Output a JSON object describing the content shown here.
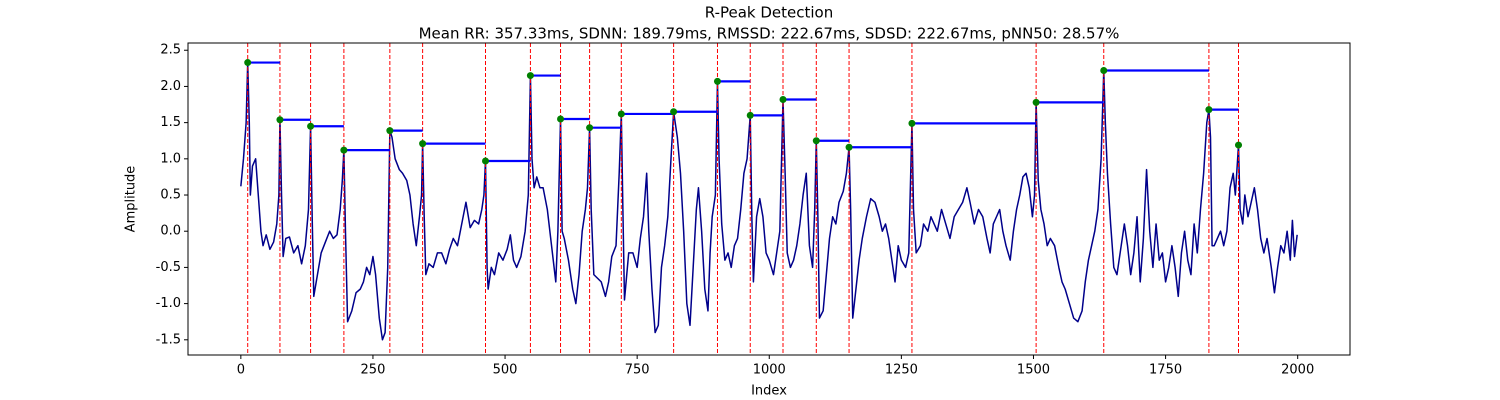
{
  "chart_data": {
    "type": "line",
    "title": "R-Peak Detection",
    "subtitle": "Mean RR: 357.33ms, SDNN: 189.79ms, RMSSD: 222.67ms, SDSD: 222.67ms, pNN50: 28.57%",
    "x_label": "Index",
    "y_label": "Amplitude",
    "xlim": [
      -100,
      2099
    ],
    "ylim": [
      -1.71,
      2.6
    ],
    "xticks": [
      0,
      250,
      500,
      750,
      1000,
      1250,
      1500,
      1750,
      2000
    ],
    "yticks": [
      -1.5,
      {
        "value": -1,
        "label": "-1.0"
      },
      -0.5,
      {
        "value": 0,
        "label": "0.0"
      },
      0.5,
      {
        "value": 1,
        "label": "1.0"
      },
      1.5,
      {
        "value": 2,
        "label": "2.0"
      },
      2.5
    ],
    "x": [
      0,
      5,
      10,
      13,
      16,
      18,
      22,
      28,
      33,
      38,
      42,
      48,
      55,
      62,
      68,
      72,
      74,
      77,
      80,
      85,
      92,
      100,
      108,
      115,
      122,
      128,
      132,
      135,
      138,
      145,
      152,
      160,
      168,
      175,
      182,
      188,
      192,
      195,
      198,
      202,
      210,
      218,
      226,
      232,
      238,
      244,
      250,
      255,
      262,
      268,
      273,
      278,
      282,
      286,
      292,
      300,
      306,
      314,
      320,
      326,
      332,
      338,
      342,
      344,
      347,
      350,
      356,
      364,
      372,
      380,
      388,
      395,
      402,
      410,
      418,
      426,
      434,
      442,
      450,
      456,
      460,
      463,
      466,
      468,
      474,
      480,
      488,
      496,
      504,
      510,
      516,
      522,
      530,
      538,
      544,
      548,
      551,
      555,
      560,
      566,
      572,
      580,
      588,
      596,
      600,
      605,
      608,
      612,
      620,
      628,
      634,
      640,
      646,
      652,
      656,
      660,
      663,
      668,
      675,
      682,
      690,
      696,
      702,
      710,
      716,
      720,
      723,
      726,
      734,
      742,
      750,
      756,
      762,
      768,
      772,
      778,
      784,
      790,
      796,
      802,
      808,
      814,
      819,
      826,
      832,
      838,
      844,
      850,
      856,
      862,
      866,
      872,
      878,
      884,
      888,
      892,
      898,
      902,
      905,
      910,
      916,
      922,
      928,
      934,
      940,
      946,
      952,
      958,
      964,
      967,
      970,
      976,
      982,
      988,
      994,
      1000,
      1008,
      1014,
      1020,
      1026,
      1030,
      1034,
      1040,
      1046,
      1052,
      1058,
      1064,
      1070,
      1076,
      1082,
      1086,
      1089,
      1092,
      1095,
      1102,
      1108,
      1114,
      1120,
      1126,
      1132,
      1140,
      1146,
      1151,
      1154,
      1158,
      1164,
      1170,
      1176,
      1184,
      1192,
      1200,
      1208,
      1214,
      1220,
      1226,
      1232,
      1238,
      1244,
      1250,
      1258,
      1264,
      1270,
      1273,
      1278,
      1286,
      1292,
      1300,
      1306,
      1312,
      1318,
      1326,
      1334,
      1342,
      1350,
      1358,
      1366,
      1374,
      1380,
      1388,
      1396,
      1404,
      1412,
      1418,
      1424,
      1430,
      1436,
      1442,
      1448,
      1456,
      1462,
      1468,
      1474,
      1480,
      1486,
      1492,
      1498,
      1502,
      1505,
      1509,
      1514,
      1520,
      1526,
      1532,
      1540,
      1548,
      1554,
      1560,
      1568,
      1576,
      1584,
      1592,
      1598,
      1604,
      1610,
      1616,
      1622,
      1628,
      1633,
      1636,
      1640,
      1646,
      1652,
      1658,
      1666,
      1672,
      1678,
      1684,
      1690,
      1696,
      1702,
      1708,
      1714,
      1720,
      1726,
      1732,
      1738,
      1744,
      1750,
      1756,
      1762,
      1768,
      1774,
      1780,
      1786,
      1792,
      1798,
      1804,
      1810,
      1816,
      1822,
      1828,
      1832,
      1835,
      1838,
      1842,
      1848,
      1854,
      1860,
      1866,
      1872,
      1878,
      1882,
      1888,
      1891,
      1896,
      1900,
      1906,
      1912,
      1918,
      1924,
      1930,
      1936,
      1942,
      1950,
      1956,
      1962,
      1968,
      1974,
      1980,
      1986,
      1990,
      1994,
      1999
    ],
    "series": [
      {
        "color": "#00008b",
        "values": [
          0.62,
          1.0,
          1.5,
          2.33,
          1.5,
          0.5,
          0.9,
          1.0,
          0.5,
          0.0,
          -0.2,
          -0.05,
          -0.25,
          -0.15,
          0.1,
          0.5,
          1.54,
          0.5,
          -0.35,
          -0.1,
          -0.08,
          -0.3,
          -0.2,
          -0.45,
          -0.2,
          0.3,
          1.45,
          0.2,
          -0.9,
          -0.6,
          -0.3,
          -0.15,
          0.0,
          -0.1,
          -0.05,
          0.3,
          0.7,
          1.12,
          0.0,
          -1.25,
          -1.1,
          -0.85,
          -0.8,
          -0.7,
          -0.5,
          -0.6,
          -0.35,
          -0.6,
          -1.2,
          -1.5,
          -1.4,
          -0.5,
          1.39,
          1.3,
          1.0,
          0.85,
          0.8,
          0.7,
          0.5,
          0.1,
          -0.2,
          0.2,
          0.5,
          1.21,
          0.2,
          -0.6,
          -0.45,
          -0.5,
          -0.3,
          -0.3,
          -0.45,
          -0.25,
          -0.1,
          -0.2,
          0.1,
          0.4,
          0.05,
          0.15,
          0.1,
          0.3,
          0.5,
          0.97,
          -0.5,
          -0.8,
          -0.5,
          -0.6,
          -0.3,
          -0.4,
          -0.25,
          -0.05,
          -0.4,
          -0.5,
          -0.35,
          0.0,
          0.5,
          2.15,
          1.0,
          0.6,
          0.75,
          0.6,
          0.6,
          0.3,
          -0.2,
          -0.7,
          0.0,
          1.55,
          0.0,
          -0.1,
          -0.4,
          -0.8,
          -1.0,
          -0.6,
          0.0,
          0.3,
          0.6,
          1.43,
          0.3,
          -0.6,
          -0.65,
          -0.7,
          -0.9,
          -0.7,
          -0.35,
          -0.2,
          0.8,
          1.62,
          0.3,
          -0.95,
          -0.3,
          -0.3,
          -0.5,
          -0.1,
          0.2,
          0.8,
          0.0,
          -0.8,
          -1.4,
          -1.3,
          -0.5,
          -0.2,
          0.2,
          1.0,
          1.65,
          1.3,
          0.8,
          0.0,
          -1.0,
          -1.3,
          -0.5,
          0.3,
          0.6,
          0.0,
          -0.8,
          -1.1,
          -0.3,
          0.2,
          0.5,
          2.07,
          1.0,
          0.1,
          -0.4,
          -0.3,
          -0.5,
          -0.2,
          -0.1,
          0.3,
          0.8,
          1.0,
          1.6,
          0.2,
          -0.7,
          0.2,
          0.45,
          0.2,
          -0.3,
          -0.4,
          -0.6,
          -0.3,
          0.0,
          1.82,
          0.8,
          -0.3,
          -0.5,
          -0.4,
          -0.2,
          0.1,
          0.5,
          0.8,
          -0.2,
          -0.5,
          0.3,
          1.25,
          0.2,
          -1.2,
          -1.1,
          -0.6,
          -0.1,
          0.2,
          0.1,
          0.4,
          0.55,
          0.8,
          1.16,
          0.3,
          -1.2,
          -0.8,
          -0.4,
          -0.1,
          0.2,
          0.45,
          0.4,
          0.2,
          0.0,
          0.1,
          -0.1,
          -0.4,
          -0.7,
          -0.2,
          -0.4,
          -0.5,
          -0.3,
          1.49,
          0.3,
          -0.3,
          -0.2,
          0.1,
          0.0,
          0.2,
          0.1,
          0.0,
          0.3,
          0.1,
          -0.1,
          0.2,
          0.3,
          0.4,
          0.6,
          0.4,
          0.1,
          0.3,
          0.2,
          -0.1,
          -0.3,
          0.1,
          0.2,
          0.3,
          0.0,
          -0.2,
          -0.4,
          0.0,
          0.3,
          0.5,
          0.75,
          0.8,
          0.6,
          0.2,
          0.5,
          1.78,
          0.7,
          0.3,
          0.1,
          -0.2,
          -0.1,
          -0.2,
          -0.5,
          -0.7,
          -0.8,
          -1.0,
          -1.2,
          -1.25,
          -1.1,
          -0.7,
          -0.4,
          -0.2,
          0.0,
          0.3,
          1.0,
          2.22,
          1.5,
          0.8,
          0.1,
          -0.5,
          -0.6,
          -0.2,
          0.1,
          -0.2,
          -0.6,
          -0.3,
          0.2,
          -0.7,
          -0.1,
          0.85,
          0.0,
          -0.5,
          0.1,
          -0.4,
          -0.3,
          -0.7,
          -0.5,
          -0.2,
          -0.5,
          -0.9,
          -0.3,
          0.0,
          -0.4,
          -0.6,
          0.1,
          -0.3,
          0.3,
          0.8,
          1.5,
          1.68,
          1.3,
          -0.2,
          -0.2,
          -0.1,
          0.0,
          -0.2,
          0.0,
          0.6,
          0.8,
          0.5,
          1.19,
          0.3,
          0.1,
          0.5,
          0.2,
          0.4,
          0.6,
          0.3,
          -0.1,
          -0.3,
          -0.1,
          -0.5,
          -0.85,
          -0.5,
          -0.2,
          -0.3,
          0.0,
          -0.4,
          0.15,
          -0.35,
          -0.05
        ]
      }
    ],
    "peaks": {
      "x": [
        13,
        74,
        132,
        195,
        282,
        344,
        463,
        548,
        605,
        660,
        720,
        819,
        902,
        964,
        1026,
        1089,
        1151,
        1270,
        1505,
        1633,
        1832,
        1888
      ],
      "values": [
        2.33,
        1.54,
        1.45,
        1.12,
        1.39,
        1.21,
        0.97,
        2.15,
        1.55,
        1.43,
        1.62,
        1.65,
        2.07,
        1.6,
        1.82,
        1.25,
        1.16,
        1.49,
        1.78,
        2.22,
        1.68,
        1.19
      ],
      "color": "#008000",
      "line_color": "#ff0000",
      "interval_color": "#0000ff"
    }
  }
}
